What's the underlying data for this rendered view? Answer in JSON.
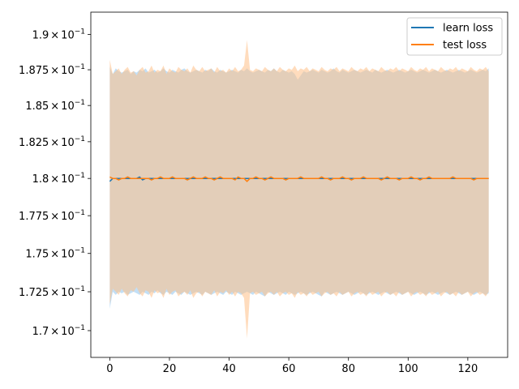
{
  "chart_data": {
    "type": "line",
    "title": "",
    "xlabel": "",
    "ylabel": "",
    "xlim": [
      -6.35,
      133.35
    ],
    "ylim": [
      0.1683,
      0.1916
    ],
    "yscale": "log",
    "grid": false,
    "legend_position": "top-right",
    "xticks": [
      {
        "value": 0,
        "label": "0"
      },
      {
        "value": 20,
        "label": "20"
      },
      {
        "value": 40,
        "label": "40"
      },
      {
        "value": 60,
        "label": "60"
      },
      {
        "value": 80,
        "label": "80"
      },
      {
        "value": 100,
        "label": "100"
      },
      {
        "value": 120,
        "label": "120"
      }
    ],
    "yticks": [
      {
        "value": 0.17,
        "mantissa": "1.7",
        "exponent": "−1"
      },
      {
        "value": 0.1725,
        "mantissa": "1.725",
        "exponent": "−1"
      },
      {
        "value": 0.175,
        "mantissa": "1.75",
        "exponent": "−1"
      },
      {
        "value": 0.1775,
        "mantissa": "1.775",
        "exponent": "−1"
      },
      {
        "value": 0.18,
        "mantissa": "1.8",
        "exponent": "−1"
      },
      {
        "value": 0.1825,
        "mantissa": "1.825",
        "exponent": "−1"
      },
      {
        "value": 0.185,
        "mantissa": "1.85",
        "exponent": "−1"
      },
      {
        "value": 0.1875,
        "mantissa": "1.875",
        "exponent": "−1"
      },
      {
        "value": 0.19,
        "mantissa": "1.9",
        "exponent": "−1"
      }
    ],
    "times_symbol": "×",
    "base": "10",
    "series": [
      {
        "name": "learn loss",
        "color": "#1f77b4",
        "band_color": "#8fc4ee",
        "x": [
          0,
          1,
          2,
          3,
          4,
          5,
          6,
          7,
          8,
          9,
          10,
          11,
          12,
          13,
          14,
          15,
          16,
          17,
          18,
          19,
          20,
          21,
          22,
          23,
          24,
          25,
          26,
          27,
          28,
          29,
          30,
          31,
          32,
          33,
          34,
          35,
          36,
          37,
          38,
          39,
          40,
          41,
          42,
          43,
          44,
          45,
          46,
          47,
          48,
          49,
          50,
          51,
          52,
          53,
          54,
          55,
          56,
          57,
          58,
          59,
          60,
          61,
          62,
          63,
          64,
          65,
          66,
          67,
          68,
          69,
          70,
          71,
          72,
          73,
          74,
          75,
          76,
          77,
          78,
          79,
          80,
          81,
          82,
          83,
          84,
          85,
          86,
          87,
          88,
          89,
          90,
          91,
          92,
          93,
          94,
          95,
          96,
          97,
          98,
          99,
          100,
          101,
          102,
          103,
          104,
          105,
          106,
          107,
          108,
          109,
          110,
          111,
          112,
          113,
          114,
          115,
          116,
          117,
          118,
          119,
          120,
          121,
          122,
          123,
          124,
          125,
          126,
          127
        ],
        "values": [
          0.1798,
          0.18,
          0.18,
          0.18,
          0.18,
          0.18,
          0.18,
          0.18,
          0.18,
          0.18,
          0.1801,
          0.1799,
          0.18,
          0.18,
          0.18,
          0.18,
          0.18,
          0.18,
          0.18,
          0.18,
          0.18,
          0.18,
          0.18,
          0.18,
          0.18,
          0.18,
          0.18,
          0.18,
          0.18,
          0.18,
          0.18,
          0.18,
          0.18,
          0.18,
          0.18,
          0.18,
          0.18,
          0.18,
          0.18,
          0.18,
          0.18,
          0.18,
          0.18,
          0.18,
          0.18,
          0.18,
          0.18,
          0.18,
          0.18,
          0.18,
          0.18,
          0.18,
          0.18,
          0.18,
          0.18,
          0.18,
          0.18,
          0.18,
          0.18,
          0.18,
          0.18,
          0.18,
          0.18,
          0.18,
          0.18,
          0.18,
          0.18,
          0.18,
          0.18,
          0.18,
          0.18,
          0.18,
          0.18,
          0.18,
          0.18,
          0.18,
          0.18,
          0.18,
          0.18,
          0.18,
          0.18,
          0.18,
          0.18,
          0.18,
          0.18,
          0.18,
          0.18,
          0.18,
          0.18,
          0.18,
          0.18,
          0.18,
          0.18,
          0.18,
          0.18,
          0.18,
          0.18,
          0.18,
          0.18,
          0.18,
          0.18,
          0.18,
          0.18,
          0.18,
          0.18,
          0.18,
          0.18,
          0.18,
          0.18,
          0.18,
          0.18,
          0.18,
          0.18,
          0.18,
          0.18,
          0.18,
          0.18,
          0.18,
          0.18,
          0.18,
          0.18,
          0.18,
          0.18,
          0.18,
          0.18,
          0.18,
          0.18,
          0.18
        ],
        "upper": [
          0.1877,
          0.1872,
          0.1876,
          0.1874,
          0.1873,
          0.1874,
          0.1875,
          0.1872,
          0.1874,
          0.1873,
          0.1875,
          0.1874,
          0.1876,
          0.1873,
          0.1874,
          0.1875,
          0.1873,
          0.1874,
          0.1876,
          0.1874,
          0.1873,
          0.1875,
          0.1874,
          0.1873,
          0.1875,
          0.1876,
          0.1874,
          0.1873,
          0.1874,
          0.1875,
          0.1874,
          0.1873,
          0.1875,
          0.1874,
          0.1876,
          0.1874,
          0.1873,
          0.1875,
          0.1874,
          0.1873,
          0.1874,
          0.1875,
          0.1874,
          0.1873,
          0.1875,
          0.1874,
          0.1876,
          0.1874,
          0.1873,
          0.1874,
          0.1875,
          0.1874,
          0.1873,
          0.1875,
          0.1874,
          0.1876,
          0.1874,
          0.1873,
          0.1875,
          0.1874,
          0.1873,
          0.1874,
          0.1872,
          0.1868,
          0.1871,
          0.1874,
          0.1873,
          0.1874,
          0.1875,
          0.1874,
          0.1873,
          0.1875,
          0.1874,
          0.1873,
          0.1874,
          0.1876,
          0.1874,
          0.1873,
          0.1875,
          0.1874,
          0.1873,
          0.1874,
          0.1875,
          0.1874,
          0.1873,
          0.1874,
          0.1875,
          0.1874,
          0.1873,
          0.1875,
          0.1874,
          0.1873,
          0.1874,
          0.1875,
          0.1874,
          0.1873,
          0.1874,
          0.1875,
          0.1874,
          0.1873,
          0.1874,
          0.1875,
          0.1874,
          0.1873,
          0.1874,
          0.1875,
          0.1874,
          0.1873,
          0.1874,
          0.1875,
          0.1874,
          0.1873,
          0.1874,
          0.1875,
          0.1874,
          0.1873,
          0.1874,
          0.1875,
          0.1874,
          0.1873,
          0.1874,
          0.1875,
          0.1874,
          0.1873,
          0.1874,
          0.1875,
          0.1874,
          0.1876
        ],
        "lower": [
          0.1714,
          0.1725,
          0.1723,
          0.1725,
          0.1724,
          0.1725,
          0.1723,
          0.1724,
          0.1725,
          0.1724,
          0.1723,
          0.1725,
          0.1724,
          0.1723,
          0.1725,
          0.1724,
          0.1726,
          0.1724,
          0.1723,
          0.1725,
          0.1724,
          0.1723,
          0.1725,
          0.1724,
          0.1723,
          0.1725,
          0.1724,
          0.1723,
          0.1724,
          0.1725,
          0.1724,
          0.1723,
          0.1725,
          0.1724,
          0.1723,
          0.1724,
          0.1725,
          0.1724,
          0.1723,
          0.1725,
          0.1724,
          0.1723,
          0.1725,
          0.1724,
          0.1723,
          0.1724,
          0.1725,
          0.1724,
          0.1723,
          0.1725,
          0.1724,
          0.1723,
          0.1722,
          0.1725,
          0.1724,
          0.1723,
          0.1724,
          0.1725,
          0.1724,
          0.1723,
          0.1725,
          0.1724,
          0.1723,
          0.1724,
          0.1725,
          0.1724,
          0.1723,
          0.1724,
          0.1725,
          0.1724,
          0.1723,
          0.1722,
          0.1725,
          0.1724,
          0.1723,
          0.1724,
          0.1725,
          0.1724,
          0.1723,
          0.1724,
          0.1725,
          0.1724,
          0.1723,
          0.1724,
          0.1725,
          0.1724,
          0.1723,
          0.1724,
          0.1725,
          0.1724,
          0.1723,
          0.1724,
          0.1725,
          0.1724,
          0.1723,
          0.1724,
          0.1725,
          0.1724,
          0.1723,
          0.1724,
          0.1725,
          0.1724,
          0.1723,
          0.1724,
          0.1725,
          0.1724,
          0.1723,
          0.1724,
          0.1725,
          0.1724,
          0.1723,
          0.1724,
          0.1725,
          0.1724,
          0.1723,
          0.1724,
          0.1725,
          0.1724,
          0.1723,
          0.1724,
          0.1725,
          0.1724,
          0.1723,
          0.1724,
          0.1725,
          0.1724,
          0.1723,
          0.1724
        ]
      },
      {
        "name": "test loss",
        "color": "#ff7f0e",
        "band_color": "#ffbf86",
        "x": [
          0,
          1,
          2,
          3,
          4,
          5,
          6,
          7,
          8,
          9,
          10,
          11,
          12,
          13,
          14,
          15,
          16,
          17,
          18,
          19,
          20,
          21,
          22,
          23,
          24,
          25,
          26,
          27,
          28,
          29,
          30,
          31,
          32,
          33,
          34,
          35,
          36,
          37,
          38,
          39,
          40,
          41,
          42,
          43,
          44,
          45,
          46,
          47,
          48,
          49,
          50,
          51,
          52,
          53,
          54,
          55,
          56,
          57,
          58,
          59,
          60,
          61,
          62,
          63,
          64,
          65,
          66,
          67,
          68,
          69,
          70,
          71,
          72,
          73,
          74,
          75,
          76,
          77,
          78,
          79,
          80,
          81,
          82,
          83,
          84,
          85,
          86,
          87,
          88,
          89,
          90,
          91,
          92,
          93,
          94,
          95,
          96,
          97,
          98,
          99,
          100,
          101,
          102,
          103,
          104,
          105,
          106,
          107,
          108,
          109,
          110,
          111,
          112,
          113,
          114,
          115,
          116,
          117,
          118,
          119,
          120,
          121,
          122,
          123,
          124,
          125,
          126,
          127
        ],
        "values": [
          0.1801,
          0.18,
          0.18,
          0.1799,
          0.18,
          0.18,
          0.1801,
          0.18,
          0.18,
          0.18,
          0.18,
          0.18,
          0.18,
          0.18,
          0.1799,
          0.18,
          0.18,
          0.1801,
          0.18,
          0.18,
          0.18,
          0.1801,
          0.18,
          0.18,
          0.18,
          0.18,
          0.1799,
          0.18,
          0.1801,
          0.18,
          0.18,
          0.18,
          0.1801,
          0.18,
          0.18,
          0.1799,
          0.18,
          0.1801,
          0.18,
          0.18,
          0.18,
          0.18,
          0.1799,
          0.1801,
          0.18,
          0.18,
          0.1798,
          0.18,
          0.18,
          0.1801,
          0.18,
          0.18,
          0.1799,
          0.18,
          0.1801,
          0.18,
          0.18,
          0.18,
          0.18,
          0.1799,
          0.18,
          0.18,
          0.18,
          0.18,
          0.1801,
          0.18,
          0.18,
          0.18,
          0.18,
          0.18,
          0.18,
          0.1801,
          0.18,
          0.18,
          0.1799,
          0.18,
          0.18,
          0.18,
          0.1801,
          0.18,
          0.18,
          0.1799,
          0.18,
          0.18,
          0.18,
          0.1801,
          0.18,
          0.18,
          0.18,
          0.18,
          0.18,
          0.1799,
          0.18,
          0.1801,
          0.18,
          0.18,
          0.18,
          0.1799,
          0.18,
          0.18,
          0.18,
          0.1801,
          0.18,
          0.18,
          0.1799,
          0.18,
          0.18,
          0.1801,
          0.18,
          0.18,
          0.18,
          0.18,
          0.18,
          0.18,
          0.18,
          0.1801,
          0.18,
          0.18,
          0.18,
          0.18,
          0.18,
          0.18,
          0.1799,
          0.18,
          0.18,
          0.18,
          0.18,
          0.18
        ],
        "upper": [
          0.1882,
          0.1872,
          0.1874,
          0.1876,
          0.1872,
          0.1875,
          0.1877,
          0.1873,
          0.1874,
          0.1871,
          0.1875,
          0.1877,
          0.1873,
          0.1874,
          0.1878,
          0.1873,
          0.1875,
          0.1874,
          0.1878,
          0.1872,
          0.1876,
          0.1874,
          0.1873,
          0.1877,
          0.1875,
          0.1874,
          0.1876,
          0.1873,
          0.1878,
          0.1875,
          0.1874,
          0.1877,
          0.1874,
          0.1875,
          0.1876,
          0.1873,
          0.1877,
          0.1874,
          0.1875,
          0.1873,
          0.1876,
          0.1874,
          0.1877,
          0.1874,
          0.1875,
          0.1878,
          0.1896,
          0.1875,
          0.1874,
          0.1876,
          0.1875,
          0.1874,
          0.1877,
          0.1875,
          0.1874,
          0.1876,
          0.1874,
          0.1877,
          0.1875,
          0.1874,
          0.1876,
          0.1875,
          0.1878,
          0.1874,
          0.1876,
          0.1875,
          0.1877,
          0.1874,
          0.1876,
          0.1875,
          0.1874,
          0.1877,
          0.1875,
          0.1874,
          0.1876,
          0.1875,
          0.1877,
          0.1874,
          0.1876,
          0.1875,
          0.1874,
          0.1877,
          0.1875,
          0.1874,
          0.1876,
          0.1875,
          0.1877,
          0.1874,
          0.1876,
          0.1875,
          0.1874,
          0.1877,
          0.1875,
          0.1874,
          0.1876,
          0.1875,
          0.1877,
          0.1874,
          0.1876,
          0.1875,
          0.1874,
          0.1877,
          0.1875,
          0.1874,
          0.1876,
          0.1875,
          0.1877,
          0.1874,
          0.1876,
          0.1875,
          0.1874,
          0.1877,
          0.1875,
          0.1874,
          0.1876,
          0.1875,
          0.1877,
          0.1874,
          0.1876,
          0.1875,
          0.1874,
          0.1877,
          0.1875,
          0.1874,
          0.1876,
          0.1875,
          0.1877,
          0.1874
        ],
        "lower": [
          0.1717,
          0.1727,
          0.1725,
          0.1723,
          0.1727,
          0.1724,
          0.1722,
          0.1726,
          0.1725,
          0.1728,
          0.1724,
          0.1722,
          0.1726,
          0.1725,
          0.1721,
          0.1726,
          0.1724,
          0.1725,
          0.1721,
          0.1727,
          0.1723,
          0.1725,
          0.1726,
          0.1722,
          0.1724,
          0.1725,
          0.1723,
          0.1726,
          0.1721,
          0.1724,
          0.1725,
          0.1722,
          0.1725,
          0.1724,
          0.1723,
          0.1726,
          0.1722,
          0.1725,
          0.1724,
          0.1726,
          0.1723,
          0.1725,
          0.1722,
          0.1725,
          0.1724,
          0.1721,
          0.1695,
          0.1724,
          0.1725,
          0.1723,
          0.1724,
          0.1725,
          0.1722,
          0.1724,
          0.1725,
          0.1723,
          0.1725,
          0.1722,
          0.1724,
          0.1725,
          0.1723,
          0.1724,
          0.1721,
          0.1725,
          0.1723,
          0.1724,
          0.1722,
          0.1725,
          0.1723,
          0.1724,
          0.1725,
          0.1722,
          0.1724,
          0.1725,
          0.1723,
          0.1724,
          0.1722,
          0.1725,
          0.1723,
          0.1724,
          0.1725,
          0.1722,
          0.1724,
          0.1725,
          0.1723,
          0.1724,
          0.1722,
          0.1725,
          0.1723,
          0.1724,
          0.1725,
          0.1722,
          0.1724,
          0.1725,
          0.1723,
          0.1724,
          0.1722,
          0.1725,
          0.1723,
          0.1724,
          0.1725,
          0.1722,
          0.1724,
          0.1725,
          0.1723,
          0.1724,
          0.1722,
          0.1725,
          0.1723,
          0.1724,
          0.1725,
          0.1722,
          0.1724,
          0.1725,
          0.1723,
          0.1724,
          0.1722,
          0.1725,
          0.1723,
          0.1724,
          0.1725,
          0.1722,
          0.1724,
          0.1725,
          0.1723,
          0.1724,
          0.1722,
          0.1725
        ]
      }
    ]
  }
}
